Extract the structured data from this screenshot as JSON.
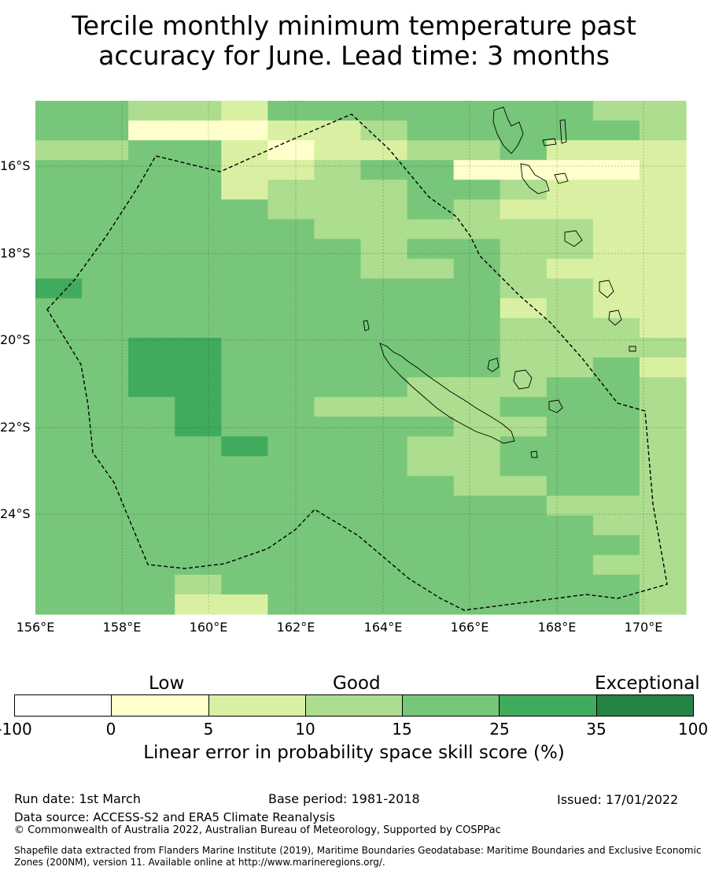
{
  "title_line1": "Tercile monthly minimum temperature past",
  "title_line2": "accuracy for June. Lead time: 3 months",
  "map": {
    "lon_ticks": [
      "156°E",
      "158°E",
      "160°E",
      "162°E",
      "164°E",
      "166°E",
      "168°E",
      "170°E"
    ],
    "lat_ticks": [
      "16°S",
      "18°S",
      "20°S",
      "22°S",
      "24°S"
    ],
    "palette": [
      "#ffffff",
      "#ffffcc",
      "#d9f0a3",
      "#addd8e",
      "#78c679",
      "#41ab5d",
      "#238443"
    ],
    "grid": [
      "44332444444433",
      "44111223444443",
      "33442122334222",
      "44442234411112",
      "44442333443222",
      "44444333432222",
      "44444433333322",
      "44444443443322",
      "44444443343222",
      "54444444443322",
      "44444444442322",
      "44444444443332",
      "44554444443333",
      "44554444443342",
      "44554444333443",
      "44454433334443",
      "44454444433443",
      "44445444334443",
      "44444444334443",
      "44444444433443",
      "44444444444333",
      "44444444444433",
      "44444444444443",
      "44444444444433",
      "44434444444443",
      "44422444444443"
    ]
  },
  "colorbar": {
    "categories": [
      "Low",
      "Good",
      "Exceptional"
    ],
    "ticks": [
      "-100",
      "0",
      "5",
      "10",
      "15",
      "25",
      "35",
      "100"
    ],
    "colors": [
      "#ffffff",
      "#ffffcc",
      "#d9f0a3",
      "#addd8e",
      "#78c679",
      "#41ab5d",
      "#238443"
    ],
    "label": "Linear error in probability space skill score (%)"
  },
  "footer": {
    "run_date": "Run date: 1st March",
    "base_period": "Base period: 1981-2018",
    "issued": "Issued: 17/01/2022",
    "data_source": "Data source: ACCESS-S2 and ERA5 Climate Reanalysis",
    "copyright": "© Commonwealth of Australia 2022, Australian Bureau of Meteorology, Supported by COSPPac",
    "shapefile": "Shapefile data extracted from Flanders Marine Institute (2019), Maritime Boundaries Geodatabase: Maritime Boundaries and Exclusive Economic Zones (200NM), version 11. Available online at http://www.marineregions.org/."
  }
}
